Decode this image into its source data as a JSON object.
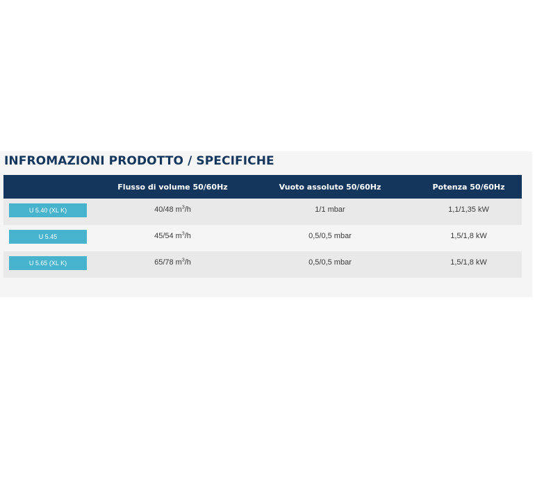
{
  "section": {
    "title": "INFROMAZIONI PRODOTTO / SPECIFICHE"
  },
  "table": {
    "headers": [
      "",
      "Flusso di volume 50/60Hz",
      "Vuoto assoluto 50/60Hz",
      "Potenza 50/60Hz"
    ],
    "rows": [
      {
        "model": "U 5.40 (XL K)",
        "flow": "40/48 m",
        "flow_unit_exp": "3",
        "flow_unit_tail": "/h",
        "vacuum": "1/1 mbar",
        "power": "1,1/1,35 kW"
      },
      {
        "model": "U 5.45",
        "flow": "45/54 m",
        "flow_unit_exp": "3",
        "flow_unit_tail": "/h",
        "vacuum": "0,5/0,5 mbar",
        "power": "1,5/1,8 kW"
      },
      {
        "model": "U 5.65 (XL K)",
        "flow": "65/78 m",
        "flow_unit_exp": "3",
        "flow_unit_tail": "/h",
        "vacuum": "0,5/0,5 mbar",
        "power": "1,5/1,8 kW"
      }
    ]
  },
  "colors": {
    "header_bg": "#14365c",
    "title_text": "#14365c",
    "model_button_bg": "#47b3cd",
    "row_odd_bg": "#e9e9e9",
    "row_even_bg": "#f5f5f5"
  }
}
